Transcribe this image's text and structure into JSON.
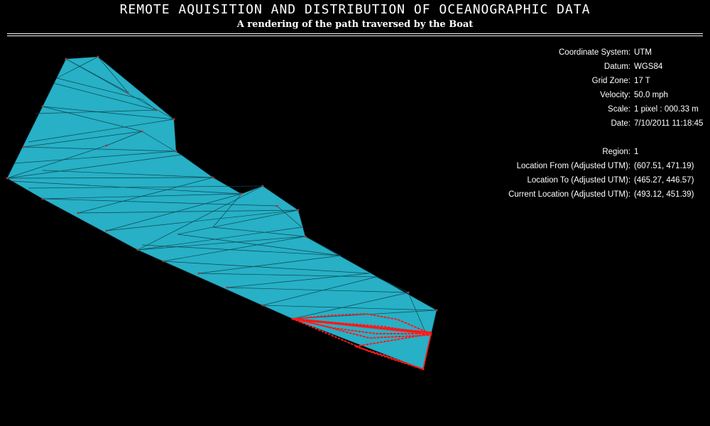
{
  "header": {
    "title": "REMOTE AQUISITION AND DISTRIBUTION OF OCEANOGRAPHIC DATA",
    "subtitle": "A rendering of the path traversed by the Boat"
  },
  "colors": {
    "background": "#000000",
    "text": "#ffffff",
    "region_fill": "#27b0c6",
    "mesh_line": "#0e4650",
    "mesh_vertex": "#a83838",
    "boat_path": "#ff1a1a"
  },
  "info": {
    "group1": [
      {
        "label": "Coordinate System:",
        "value": "UTM"
      },
      {
        "label": "Datum:",
        "value": "WGS84"
      },
      {
        "label": "Grid Zone:",
        "value": "17 T"
      },
      {
        "label": "Velocity:",
        "value": "50.0 mph"
      },
      {
        "label": "Scale:",
        "value": "1 pixel : 000.33 m"
      },
      {
        "label": "Date:",
        "value": "7/10/2011  11:18:45"
      }
    ],
    "group2": [
      {
        "label": "Region:",
        "value": "1"
      },
      {
        "label": "Location From (Adjusted UTM):",
        "value": "(607.51, 471.19)"
      },
      {
        "label": "Location To (Adjusted UTM):",
        "value": "(465.27, 446.57)"
      },
      {
        "label": "Current Location (Adjusted UTM):",
        "value": "(493.12, 451.39)"
      }
    ]
  }
}
